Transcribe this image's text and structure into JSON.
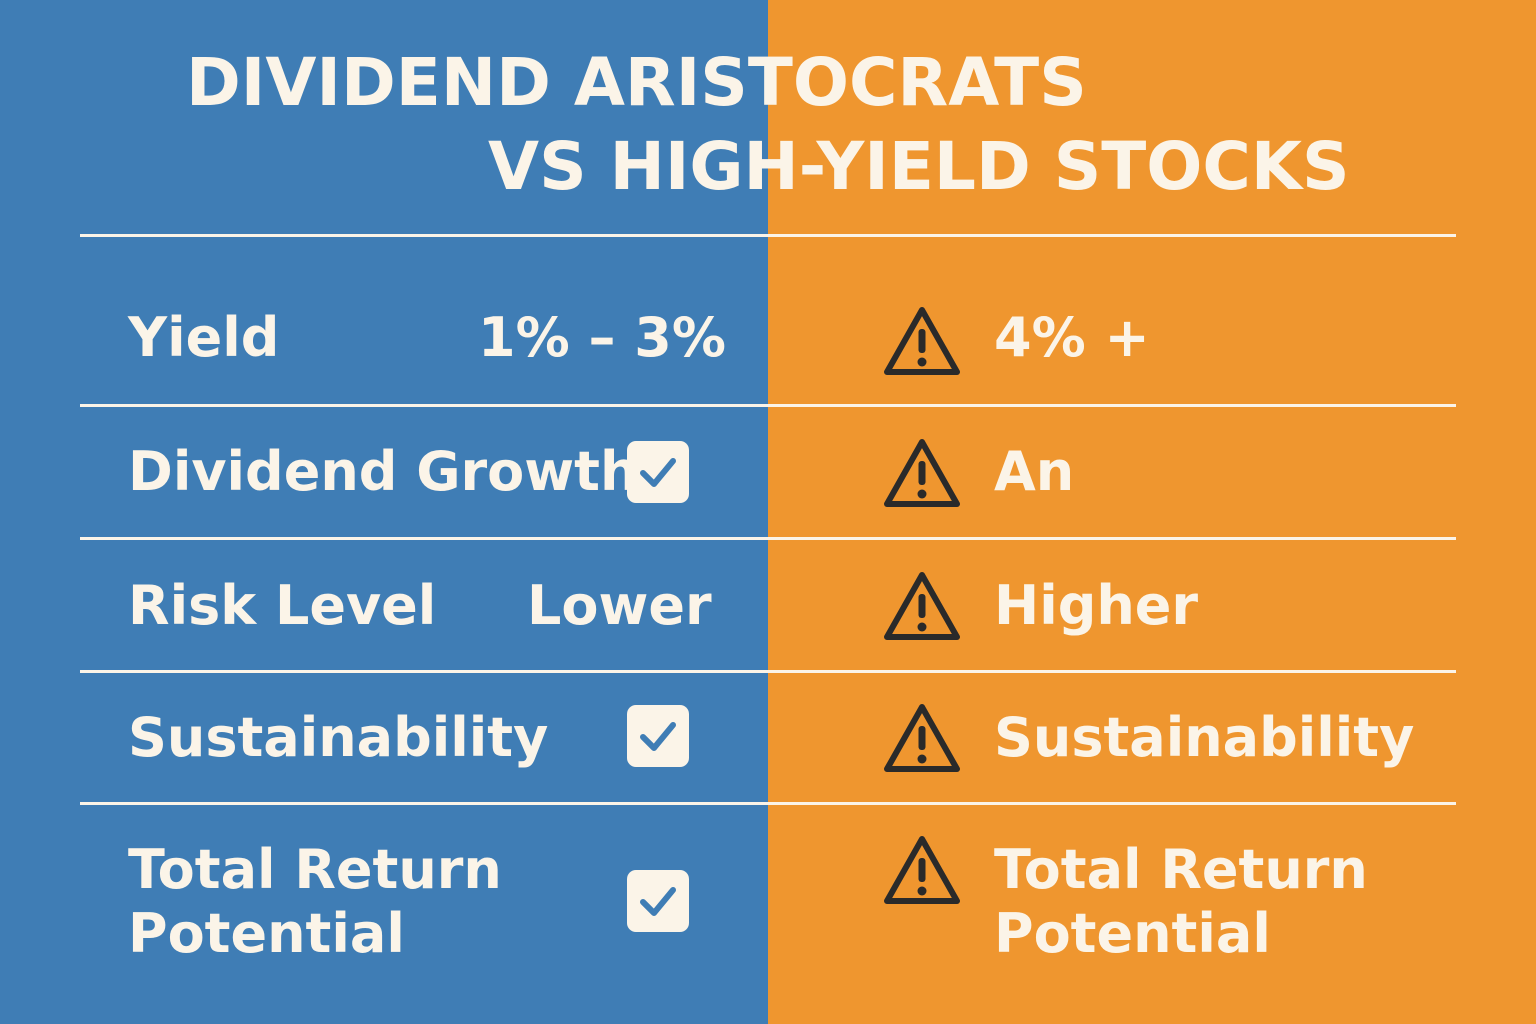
{
  "title": {
    "line1": "DIVIDEND ARISTOCRATS",
    "line2": "VS HIGH-YIELD STOCKS"
  },
  "colors": {
    "left_panel": "#3f7db5",
    "right_panel": "#ef962f",
    "text": "#fbf4e8",
    "icon_ink": "#2a2a2a"
  },
  "rows": [
    {
      "label": "Yield",
      "left_value": "1% – 3%",
      "left_icon": null,
      "right_icon": "warning-icon",
      "right_value": "4% +"
    },
    {
      "label": "Dividend Growth",
      "left_value": null,
      "left_icon": "checkbox-checked-icon",
      "right_icon": "warning-icon",
      "right_value": "An"
    },
    {
      "label": "Risk Level",
      "left_value": "Lower",
      "left_icon": null,
      "right_icon": "warning-icon",
      "right_value": "Higher"
    },
    {
      "label": "Sustainability",
      "left_value": null,
      "left_icon": "checkbox-checked-icon",
      "right_icon": "warning-icon",
      "right_value": "Sustainability"
    },
    {
      "label_line1": "Total Return",
      "label_line2": "Potential",
      "left_value": null,
      "left_icon": "checkbox-checked-icon",
      "right_icon": "warning-icon",
      "right_value_line1": "Total Return",
      "right_value_line2": "Potential"
    }
  ]
}
